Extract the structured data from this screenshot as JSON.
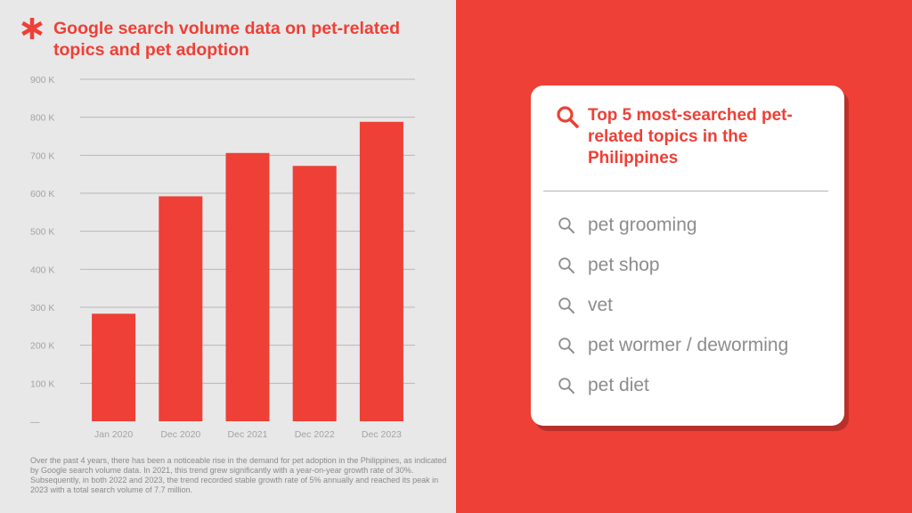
{
  "header": {
    "title": "Google search volume data on pet-related topics and pet adoption"
  },
  "chart_data": {
    "type": "bar",
    "categories": [
      "Jan 2020",
      "Dec 2020",
      "Dec 2021",
      "Dec 2022",
      "Dec 2023"
    ],
    "values": [
      283000,
      592000,
      706000,
      672000,
      788000
    ],
    "ylim": [
      0,
      900000
    ],
    "y_ticks": [
      100000,
      200000,
      300000,
      400000,
      500000,
      600000,
      700000,
      800000,
      900000
    ],
    "y_tick_labels": [
      "100 K",
      "200 K",
      "300 K",
      "400 K",
      "500 K",
      "600 K",
      "700 K",
      "800 K",
      "900 K"
    ],
    "zero_label": "—",
    "grid": true,
    "bar_color": "#ee4036"
  },
  "footnote": "Over the past 4 years, there has been a noticeable rise in the demand for pet adoption in the Philippines, as indicated by Google search volume data. In 2021, this trend grew significantly with a year-on-year growth rate of 30%. Subsequently, in both 2022 and 2023, the trend recorded stable growth rate of 5% annually and reached its peak in 2023 with a total search volume of 7.7 million.",
  "card": {
    "title": "Top 5 most-searched pet-related topics in the Philippines",
    "icon": "search-icon",
    "topics": [
      "pet grooming",
      "pet shop",
      "vet",
      "pet wormer / deworming",
      "pet diet"
    ]
  },
  "colors": {
    "accent": "#ee4036",
    "background": "#e8e8e8",
    "card": "#ffffff",
    "muted_text": "#8c8c8c"
  }
}
